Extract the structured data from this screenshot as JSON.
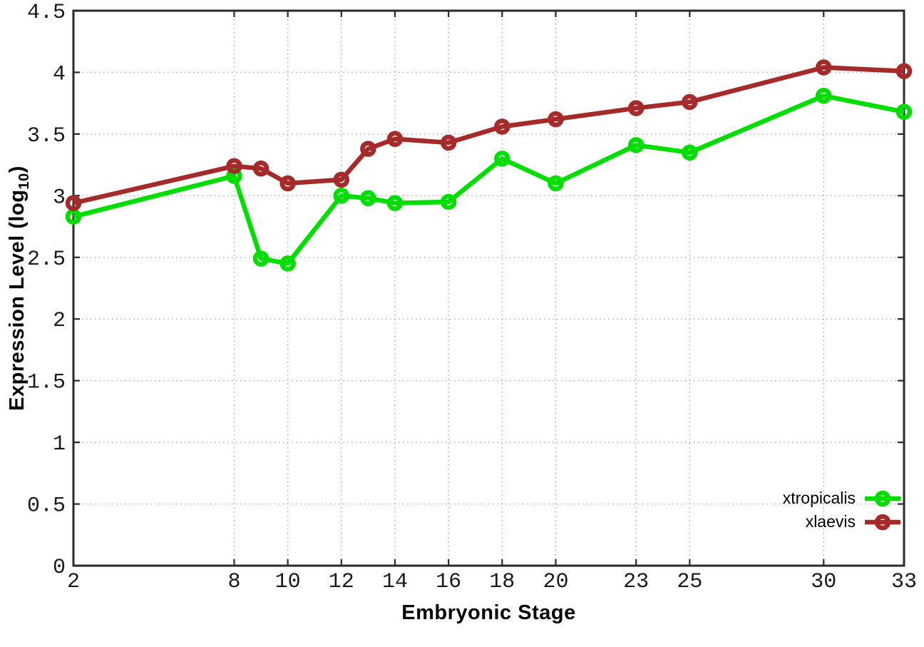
{
  "chart_data": {
    "type": "line",
    "title": "",
    "xlabel": "Embryonic Stage",
    "ylabel": "Expression Level (log10)",
    "ylabel_parts": {
      "prefix": "Expression Level (log",
      "sub": "10",
      "suffix": ")"
    },
    "x": [
      2,
      8,
      9,
      10,
      12,
      13,
      14,
      16,
      18,
      20,
      23,
      25,
      30,
      33
    ],
    "series": [
      {
        "name": "xtropicalis",
        "color": "#00dd00",
        "values": [
          2.83,
          3.16,
          2.49,
          2.45,
          3.0,
          2.98,
          2.94,
          2.95,
          3.3,
          3.1,
          3.41,
          3.35,
          3.81,
          3.68
        ]
      },
      {
        "name": "xlaevis",
        "color": "#a52a2a",
        "values": [
          2.94,
          3.24,
          3.22,
          3.1,
          3.13,
          3.38,
          3.46,
          3.43,
          3.56,
          3.62,
          3.71,
          3.76,
          4.04,
          4.01
        ]
      }
    ],
    "xticks": [
      "2",
      "8",
      "10",
      "12",
      "14",
      "16",
      "18",
      "20",
      "23",
      "25",
      "30",
      "33"
    ],
    "yticks": [
      "0",
      "0.5",
      "1",
      "1.5",
      "2",
      "2.5",
      "3",
      "3.5",
      "4",
      "4.5"
    ],
    "xlim": [
      2,
      33
    ],
    "ylim": [
      0,
      4.5
    ],
    "grid": true,
    "legend_position": "inside-bottom-right",
    "marker": "open-circle",
    "colors": {
      "grid": "#a8a8a8",
      "axis": "#2a2a2a",
      "tick_label": "#1a1a1a"
    }
  }
}
